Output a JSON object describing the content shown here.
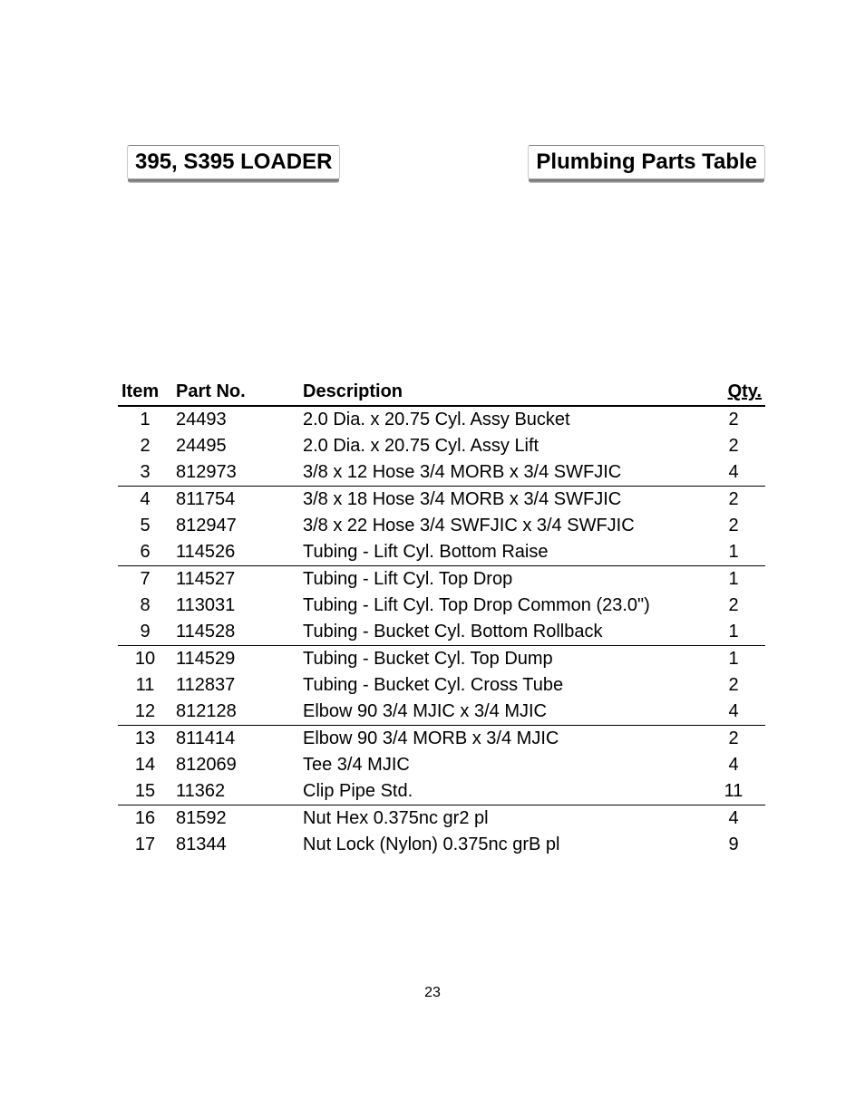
{
  "header": {
    "left": "395, S395 LOADER",
    "right": "Plumbing Parts Table"
  },
  "table": {
    "columns": {
      "item": "Item",
      "part": "Part No.",
      "desc": "Description",
      "qty": "Qty."
    },
    "rows": [
      {
        "item": "1",
        "part": "24493",
        "desc": "2.0 Dia. x 20.75 Cyl. Assy Bucket",
        "qty": "2",
        "sep": false
      },
      {
        "item": "2",
        "part": "24495",
        "desc": "2.0 Dia. x 20.75 Cyl. Assy Lift",
        "qty": "2",
        "sep": false
      },
      {
        "item": "3",
        "part": "812973",
        "desc": "3/8 x 12 Hose 3/4 MORB x 3/4 SWFJIC",
        "qty": "4",
        "sep": true
      },
      {
        "item": "4",
        "part": "811754",
        "desc": "3/8 x 18 Hose 3/4 MORB x 3/4 SWFJIC",
        "qty": "2",
        "sep": false
      },
      {
        "item": "5",
        "part": "812947",
        "desc": "3/8 x 22 Hose 3/4 SWFJIC x 3/4 SWFJIC",
        "qty": "2",
        "sep": false
      },
      {
        "item": "6",
        "part": "114526",
        "desc": "Tubing - Lift Cyl. Bottom Raise",
        "qty": "1",
        "sep": true
      },
      {
        "item": "7",
        "part": "114527",
        "desc": "Tubing - Lift Cyl. Top Drop",
        "qty": "1",
        "sep": false
      },
      {
        "item": "8",
        "part": "113031",
        "desc": "Tubing - Lift Cyl. Top Drop Common (23.0\")",
        "qty": "2",
        "sep": false
      },
      {
        "item": "9",
        "part": "114528",
        "desc": "Tubing - Bucket Cyl. Bottom Rollback",
        "qty": "1",
        "sep": true
      },
      {
        "item": "10",
        "part": "114529",
        "desc": "Tubing - Bucket Cyl. Top Dump",
        "qty": "1",
        "sep": false
      },
      {
        "item": "11",
        "part": "112837",
        "desc": "Tubing - Bucket Cyl. Cross Tube",
        "qty": "2",
        "sep": false
      },
      {
        "item": "12",
        "part": "812128",
        "desc": "Elbow 90  3/4 MJIC x 3/4 MJIC",
        "qty": "4",
        "sep": true
      },
      {
        "item": "13",
        "part": "811414",
        "desc": "Elbow 90  3/4 MORB x 3/4 MJIC",
        "qty": "2",
        "sep": false
      },
      {
        "item": "14",
        "part": "812069",
        "desc": "Tee 3/4 MJIC",
        "qty": "4",
        "sep": false
      },
      {
        "item": "15",
        "part": "11362",
        "desc": "Clip Pipe Std.",
        "qty": "11",
        "sep": true
      },
      {
        "item": "16",
        "part": "81592",
        "desc": "Nut Hex 0.375nc gr2 pl",
        "qty": "4",
        "sep": false
      },
      {
        "item": "17",
        "part": "81344",
        "desc": "Nut Lock (Nylon) 0.375nc grB pl",
        "qty": "9",
        "sep": false
      }
    ]
  },
  "page_number": "23",
  "styles": {
    "background_color": "#ffffff",
    "text_color": "#000000",
    "header_fontsize": 24,
    "body_fontsize": 20,
    "page_number_fontsize": 16,
    "rule_color": "#000000",
    "header_box_border": "#c8c8c8",
    "header_box_shadow": "#808080"
  }
}
